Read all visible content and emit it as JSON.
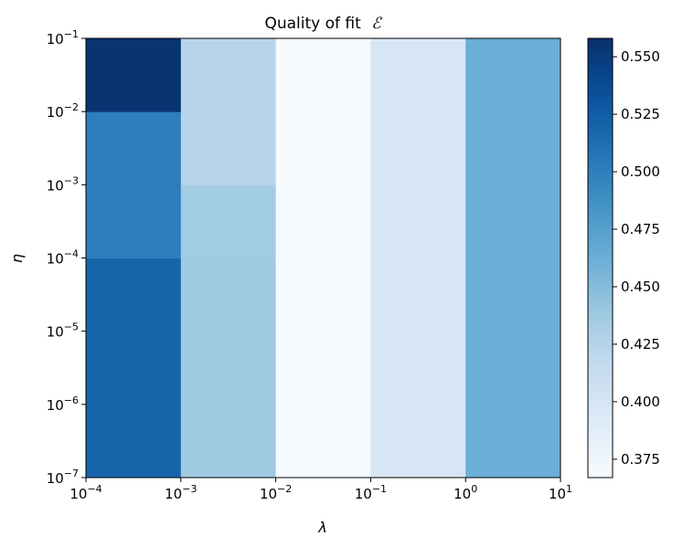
{
  "chart_data": {
    "type": "heatmap",
    "title": "Quality of fit",
    "title_symbol": "ℰ",
    "xlabel": "λ",
    "ylabel": "η",
    "x_scale": "log",
    "y_scale": "log",
    "xlim": [
      0.0001,
      10
    ],
    "ylim": [
      1e-07,
      0.1
    ],
    "x_edges": [
      0.0001,
      0.001,
      0.01,
      0.1,
      1,
      10
    ],
    "y_edges": [
      1e-07,
      1e-06,
      1e-05,
      0.0001,
      0.001,
      0.01,
      0.1
    ],
    "x_tick_labels": [
      {
        "value": 0.0001,
        "base": "10",
        "exp": "−4"
      },
      {
        "value": 0.001,
        "base": "10",
        "exp": "−3"
      },
      {
        "value": 0.01,
        "base": "10",
        "exp": "−2"
      },
      {
        "value": 0.1,
        "base": "10",
        "exp": "−1"
      },
      {
        "value": 1,
        "base": "10",
        "exp": "0"
      },
      {
        "value": 10,
        "base": "10",
        "exp": "1"
      }
    ],
    "y_tick_labels": [
      {
        "value": 1e-07,
        "base": "10",
        "exp": "−7"
      },
      {
        "value": 1e-06,
        "base": "10",
        "exp": "−6"
      },
      {
        "value": 1e-05,
        "base": "10",
        "exp": "−5"
      },
      {
        "value": 0.0001,
        "base": "10",
        "exp": "−4"
      },
      {
        "value": 0.001,
        "base": "10",
        "exp": "−3"
      },
      {
        "value": 0.01,
        "base": "10",
        "exp": "−2"
      },
      {
        "value": 0.1,
        "base": "10",
        "exp": "−1"
      }
    ],
    "values": [
      [
        0.52,
        0.438,
        0.369,
        0.398,
        0.462
      ],
      [
        0.52,
        0.438,
        0.369,
        0.398,
        0.462
      ],
      [
        0.52,
        0.438,
        0.369,
        0.398,
        0.462
      ],
      [
        0.501,
        0.436,
        0.369,
        0.398,
        0.462
      ],
      [
        0.501,
        0.424,
        0.369,
        0.398,
        0.462
      ],
      [
        0.555,
        0.424,
        0.369,
        0.398,
        0.462
      ]
    ],
    "values_note_rows": "bottom-to-top",
    "colormap": "Blues",
    "color_range": [
      0.367,
      0.558
    ],
    "colorbar_ticks": [
      {
        "value": 0.375,
        "label": "0.375"
      },
      {
        "value": 0.4,
        "label": "0.400"
      },
      {
        "value": 0.425,
        "label": "0.425"
      },
      {
        "value": 0.45,
        "label": "0.450"
      },
      {
        "value": 0.475,
        "label": "0.475"
      },
      {
        "value": 0.5,
        "label": "0.500"
      },
      {
        "value": 0.525,
        "label": "0.525"
      },
      {
        "value": 0.55,
        "label": "0.550"
      }
    ],
    "grid": false,
    "colorbar_position": "right"
  }
}
